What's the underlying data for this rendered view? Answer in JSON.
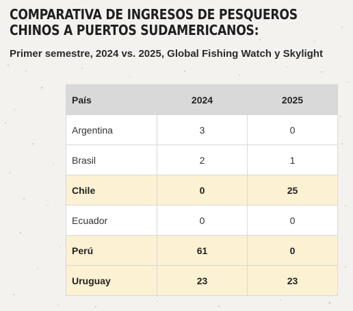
{
  "title": "COMPARATIVA DE INGRESOS DE PESQUEROS CHINOS A PUERTOS SUDAMERICANOS:",
  "subtitle": "Primer semestre, 2024 vs. 2025, Global Fishing Watch y Skylight",
  "colors": {
    "background": "#f3f2ef",
    "header": "#d9d9d9",
    "highlight": "#fcf1d3",
    "row": "#ffffff"
  },
  "table": {
    "headers": [
      "País",
      "2024",
      "2025"
    ],
    "rows": [
      {
        "country": "Argentina",
        "y2024": "3",
        "y2025": "0",
        "highlight": false
      },
      {
        "country": "Brasil",
        "y2024": "2",
        "y2025": "1",
        "highlight": false
      },
      {
        "country": "Chile",
        "y2024": "0",
        "y2025": "25",
        "highlight": true
      },
      {
        "country": "Ecuador",
        "y2024": "0",
        "y2025": "0",
        "highlight": false
      },
      {
        "country": "Perú",
        "y2024": "61",
        "y2025": "0",
        "highlight": true
      },
      {
        "country": "Uruguay",
        "y2024": "23",
        "y2025": "23",
        "highlight": true
      }
    ]
  },
  "chart_data": {
    "type": "table",
    "title": "COMPARATIVA DE INGRESOS DE PESQUEROS CHINOS A PUERTOS SUDAMERICANOS:",
    "subtitle": "Primer semestre, 2024 vs. 2025, Global Fishing Watch y Skylight",
    "categories": [
      "Argentina",
      "Brasil",
      "Chile",
      "Ecuador",
      "Perú",
      "Uruguay"
    ],
    "series": [
      {
        "name": "2024",
        "values": [
          3,
          2,
          0,
          0,
          61,
          23
        ]
      },
      {
        "name": "2025",
        "values": [
          0,
          1,
          25,
          0,
          0,
          23
        ]
      }
    ],
    "highlighted_rows": [
      "Chile",
      "Perú",
      "Uruguay"
    ]
  }
}
